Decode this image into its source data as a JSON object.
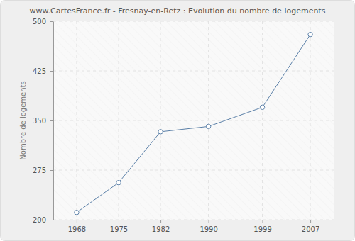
{
  "chart_data": {
    "type": "line",
    "title": "www.CartesFrance.fr - Fresnay-en-Retz : Evolution du nombre de logements",
    "y_label": "Nombre de logements",
    "x": [
      1968,
      1975,
      1982,
      1990,
      1999,
      2007
    ],
    "values": [
      211,
      256,
      333,
      341,
      370,
      480
    ],
    "color": "#5b80a8",
    "marker": "circle",
    "xlim": [
      1964.1,
      2010.9
    ],
    "xticks": [
      1968,
      1975,
      1982,
      1990,
      1999,
      2007
    ],
    "ylim": [
      200,
      500
    ],
    "yticks": [
      200,
      275,
      350,
      425,
      500
    ],
    "grid": true
  }
}
